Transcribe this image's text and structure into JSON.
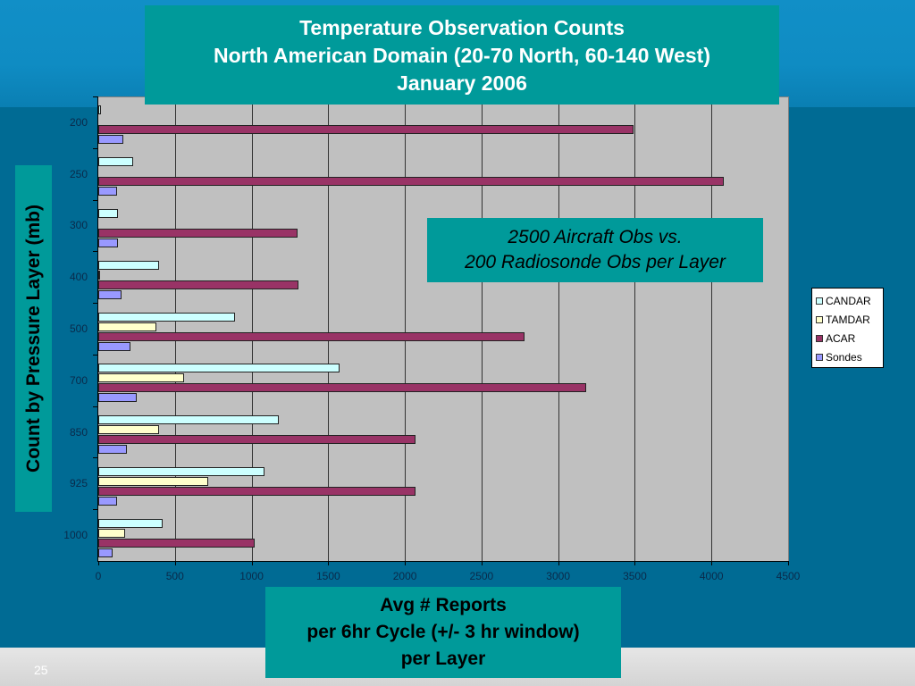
{
  "slide": {
    "number": "25",
    "title_lines": [
      "Temperature Observation Counts",
      "North American Domain (20-70 North, 60-140 West)",
      "January 2006"
    ],
    "y_axis_label": "Count by Pressure Layer (mb)",
    "x_axis_label_lines": [
      "Avg # Reports",
      "per 6hr Cycle (+/- 3 hr window)",
      "per Layer"
    ],
    "annotation_lines": [
      "2500 Aircraft Obs vs.",
      "200 Radiosonde Obs per Layer"
    ]
  },
  "colors": {
    "CANDAR": "#ccffff",
    "TAMDAR": "#ffffcc",
    "ACAR": "#993366",
    "Sondes": "#9999ff",
    "plot_bg": "#c0c0c0",
    "box_teal": "#009a9a"
  },
  "chart_data": {
    "type": "bar",
    "orientation": "horizontal",
    "title": "Temperature Observation Counts — North American Domain (20-70 North, 60-140 West) — January 2006",
    "xlabel": "Avg # Reports per 6hr Cycle (+/- 3 hr window) per Layer",
    "ylabel": "Count by Pressure Layer (mb)",
    "categories": [
      "200",
      "250",
      "300",
      "400",
      "500",
      "700",
      "850",
      "925",
      "1000"
    ],
    "xlim": [
      0,
      4500
    ],
    "xticks": [
      0,
      500,
      1000,
      1500,
      2000,
      2500,
      3000,
      3500,
      4000,
      4500
    ],
    "grid": "vertical",
    "legend_position": "right",
    "series": [
      {
        "name": "CANDAR",
        "values": [
          15,
          230,
          130,
          399,
          891,
          1571,
          1180,
          1086,
          419
        ]
      },
      {
        "name": "TAMDAR",
        "values": [
          0,
          0,
          0,
          8,
          380,
          561,
          399,
          716,
          175
        ]
      },
      {
        "name": "ACAR",
        "values": [
          3489,
          4080,
          1300,
          1303,
          2779,
          3185,
          2072,
          2072,
          1022
        ]
      },
      {
        "name": "Sondes",
        "values": [
          161,
          123,
          130,
          150,
          211,
          249,
          189,
          124,
          93
        ]
      }
    ],
    "annotations": [
      "2500 Aircraft Obs vs. 200 Radiosonde Obs per Layer"
    ]
  }
}
